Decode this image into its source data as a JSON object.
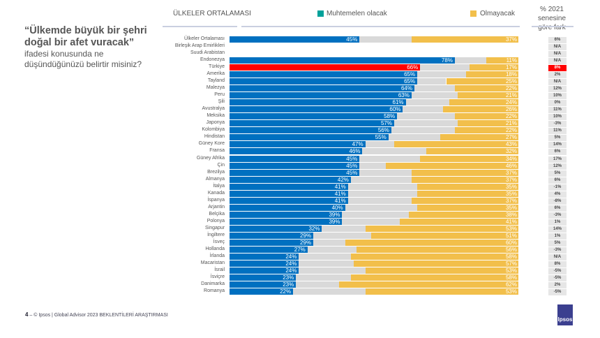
{
  "question": {
    "bold": "“Ülkemde büyük bir şehri doğal bir afet vuracak”",
    "rest": "ifadesi konusunda ne düşündüğünüzü belirtir misiniz?"
  },
  "header": {
    "section": "ÜLKELER ORTALAMASI",
    "change_col": "% 2021 senesine göre fark"
  },
  "footer": {
    "page": "4",
    "text": "© Ipsos | Global Advisor 2023 BEKLENTİLERİ ARAŞTIRMASI",
    "logo": "Ipsos"
  },
  "colors": {
    "likely": "#0070c0",
    "highlight": "#ff0000",
    "unsure": "#d9d9d9",
    "unlikely": "#f2bf4b",
    "legend_likely": "#00a19a"
  },
  "chart_data": {
    "type": "bar",
    "stacked": true,
    "orientation": "horizontal",
    "xlim": [
      0,
      100
    ],
    "legend": [
      {
        "name": "Muhtemelen  olacak"
      },
      {
        "name": "Olmayacak"
      }
    ],
    "categories": [
      "Ülkeler Ortalaması",
      "Birleşik Arap Emirlikleri",
      "Suudi Arabistan",
      "Endonezya",
      "Türkiye",
      "Amerika",
      "Tayland",
      "Malezya",
      "Peru",
      "Şili",
      "Avustralya",
      "Meksika",
      "Japonya",
      "Kolombiya",
      "Hindistan",
      "Güney Kore",
      "Fransa",
      "Güney Afrika",
      "Çin",
      "Brezilya",
      "Almanya",
      "İtalya",
      "Kanada",
      "İspanya",
      "Arjantin",
      "Belçika",
      "Polonya",
      "Singapur",
      "İngiltere",
      "İsveç",
      "Hollanda",
      "İrlanda",
      "Macaristan",
      "İsrail",
      "İsviçre",
      "Danimarka",
      "Romanya"
    ],
    "series": [
      {
        "name": "Muhtemelen  olacak",
        "values": [
          45,
          null,
          null,
          78,
          66,
          65,
          65,
          64,
          63,
          61,
          60,
          58,
          57,
          56,
          55,
          47,
          46,
          45,
          45,
          45,
          42,
          41,
          41,
          41,
          40,
          39,
          39,
          32,
          29,
          29,
          27,
          24,
          24,
          24,
          23,
          23,
          22
        ]
      },
      {
        "name": "Olmayacak",
        "values": [
          37,
          null,
          null,
          11,
          17,
          18,
          25,
          22,
          21,
          24,
          26,
          22,
          21,
          22,
          27,
          43,
          32,
          34,
          46,
          37,
          37,
          35,
          35,
          37,
          35,
          38,
          41,
          53,
          51,
          60,
          56,
          58,
          57,
          53,
          58,
          62,
          53
        ]
      }
    ],
    "change_vs_2021": [
      "6%",
      "N/A",
      "N/A",
      "N/A",
      "8%",
      "2%",
      "N/A",
      "12%",
      "10%",
      "0%",
      "11%",
      "10%",
      "-3%",
      "11%",
      "5%",
      "14%",
      "6%",
      "17%",
      "12%",
      "5%",
      "6%",
      "-1%",
      "4%",
      "-8%",
      "6%",
      "-3%",
      "1%",
      "14%",
      "1%",
      "5%",
      "-3%",
      "N/A",
      "8%",
      "-5%",
      "-5%",
      "2%",
      "-5%"
    ],
    "highlight_category": "Türkiye"
  }
}
